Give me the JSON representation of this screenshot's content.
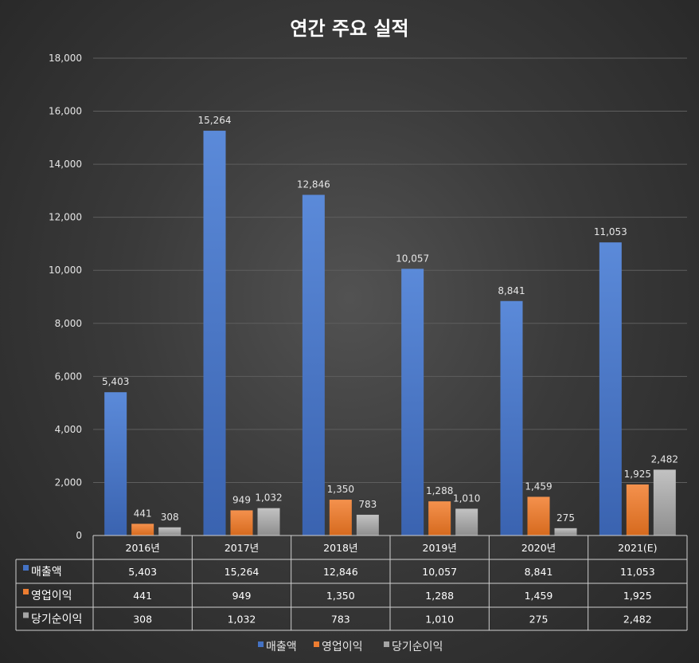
{
  "chart_data": {
    "type": "bar",
    "title": "연간 주요 실적",
    "categories": [
      "2016년",
      "2017년",
      "2018년",
      "2019년",
      "2020년",
      "2021(E)"
    ],
    "ylim": [
      0,
      18000
    ],
    "yticks": [
      "0",
      "2,000",
      "4,000",
      "6,000",
      "8,000",
      "10,000",
      "12,000",
      "14,000",
      "16,000",
      "18,000"
    ],
    "ytick_values": [
      0,
      2000,
      4000,
      6000,
      8000,
      10000,
      12000,
      14000,
      16000,
      18000
    ],
    "grid": true,
    "legend_position": "bottom",
    "series": [
      {
        "name": "매출액",
        "color": "#4472c4",
        "values": [
          5403,
          15264,
          12846,
          10057,
          8841,
          11053
        ],
        "labels": [
          "5,403",
          "15,264",
          "12,846",
          "10,057",
          "8,841",
          "11,053"
        ]
      },
      {
        "name": "영업이익",
        "color": "#ed7d31",
        "values": [
          441,
          949,
          1350,
          1288,
          1459,
          1925
        ],
        "labels": [
          "441",
          "949",
          "1,350",
          "1,288",
          "1,459",
          "1,925"
        ]
      },
      {
        "name": "당기순이익",
        "color": "#a5a5a5",
        "values": [
          308,
          1032,
          783,
          1010,
          275,
          2482
        ],
        "labels": [
          "308",
          "1,032",
          "783",
          "1,010",
          "275",
          "2,482"
        ]
      }
    ],
    "data_table": true
  }
}
